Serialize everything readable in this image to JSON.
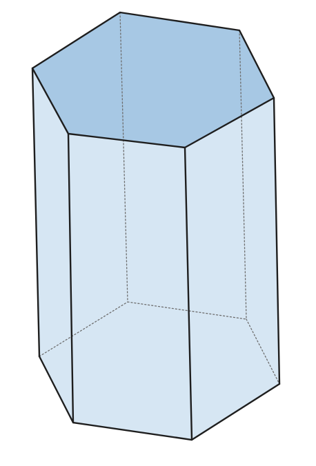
{
  "figure": {
    "shape": "hexagonal-prism",
    "view": "oblique",
    "visible_edges": "solid",
    "hidden_edges": "dotted",
    "colors": {
      "side_faces": "#d3e4f2",
      "top_face": "#a7c8e4",
      "edges": "#1e1e1e",
      "hidden_edges": "#6d6d6d",
      "background": "#ffffff"
    }
  }
}
